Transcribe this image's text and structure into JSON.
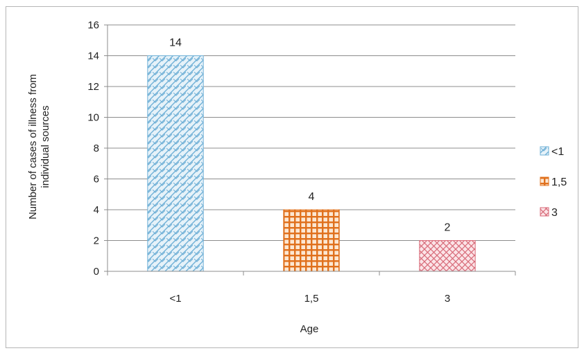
{
  "chart_data": {
    "type": "bar",
    "categories": [
      "<1",
      "1,5",
      "3"
    ],
    "values": [
      14,
      4,
      2
    ],
    "data_labels": [
      "14",
      "4",
      "2"
    ],
    "title": "",
    "xlabel": "Age",
    "ylabel_lines": [
      "Number of cases of illness from",
      "individual sources"
    ],
    "ylim": [
      0,
      16
    ],
    "yticks": [
      0,
      2,
      4,
      6,
      8,
      10,
      12,
      14,
      16
    ],
    "grid": true,
    "legend": {
      "position": "right",
      "entries": [
        "<1",
        "1,5",
        "3"
      ]
    },
    "colors": {
      "bar_1": "#6fb0d6",
      "bar_1_bg": "#e6f2f9",
      "bar_2": "#e0701c",
      "bar_2_bg": "#fce7d2",
      "bar_3": "#d86a78",
      "bar_3_bg": "#fbe4e7",
      "grid": "#8c8c8c",
      "axis": "#8c8c8c",
      "frame": "#b5b5b5"
    }
  }
}
